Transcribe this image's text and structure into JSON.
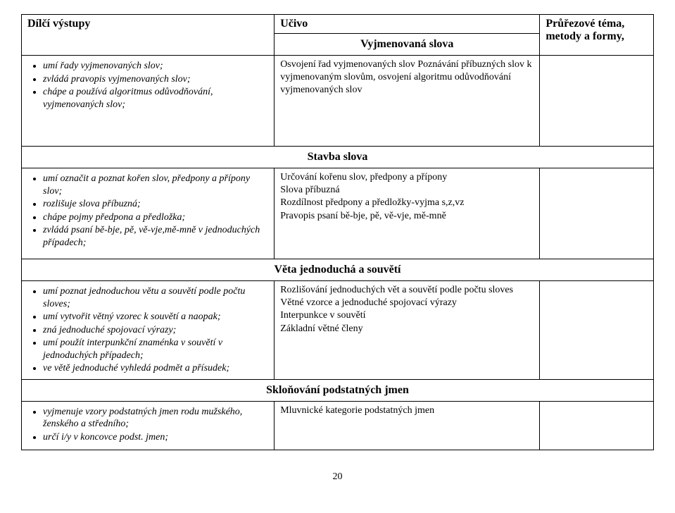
{
  "header": {
    "col1": "Dílčí výstupy",
    "col2": "Učivo",
    "col3": "Průřezové téma, metody a formy,"
  },
  "sections": [
    {
      "title": "Vyjmenovaná slova",
      "left": [
        "umí řady vyjmenovaných slov;",
        "zvládá pravopis vyjmenovaných slov;",
        "chápe a používá algoritmus odůvodňování, vyjmenovaných slov;"
      ],
      "mid": "Osvojení řad vyjmenovaných slov Poznávání příbuzných slov k vyjmenovaným slovům, osvojení algoritmu odůvodňování vyjmenovaných slov"
    },
    {
      "title": "Stavba slova",
      "left": [
        "umí označit a poznat kořen slov, předpony a přípony slov;",
        "rozlišuje slova příbuzná;",
        "chápe pojmy předpona a předložka;",
        "zvládá psaní bě-bje, pě, vě-vje,mě-mně v jednoduchých případech;"
      ],
      "mid": "Určování kořenu slov, předpony a přípony\nSlova příbuzná\nRozdílnost předpony a předložky-vyjma s,z,vz\nPravopis psaní bě-bje, pě, vě-vje, mě-mně"
    },
    {
      "title": "Věta jednoduchá a souvětí",
      "left": [
        "umí poznat jednoduchou větu a souvětí podle počtu sloves;",
        "umí vytvořit větný vzorec k souvětí a naopak;",
        "zná jednoduché spojovací výrazy;",
        "umí použít interpunkční znaménka v souvětí v jednoduchých případech;",
        "ve větě jednoduché vyhledá podmět a přísudek;"
      ],
      "mid": "Rozlišování jednoduchých vět a souvětí podle počtu sloves\nVětné vzorce a jednoduché spojovací výrazy\nInterpunkce v souvětí\nZákladní větné členy"
    },
    {
      "title": "Skloňování podstatných jmen",
      "left": [
        "vyjmenuje vzory podstatných jmen rodu mužského, ženského a středního;",
        "určí i/y v koncovce podst. jmen;"
      ],
      "mid": "Mluvnické kategorie podstatných jmen"
    }
  ],
  "page_number": "20"
}
